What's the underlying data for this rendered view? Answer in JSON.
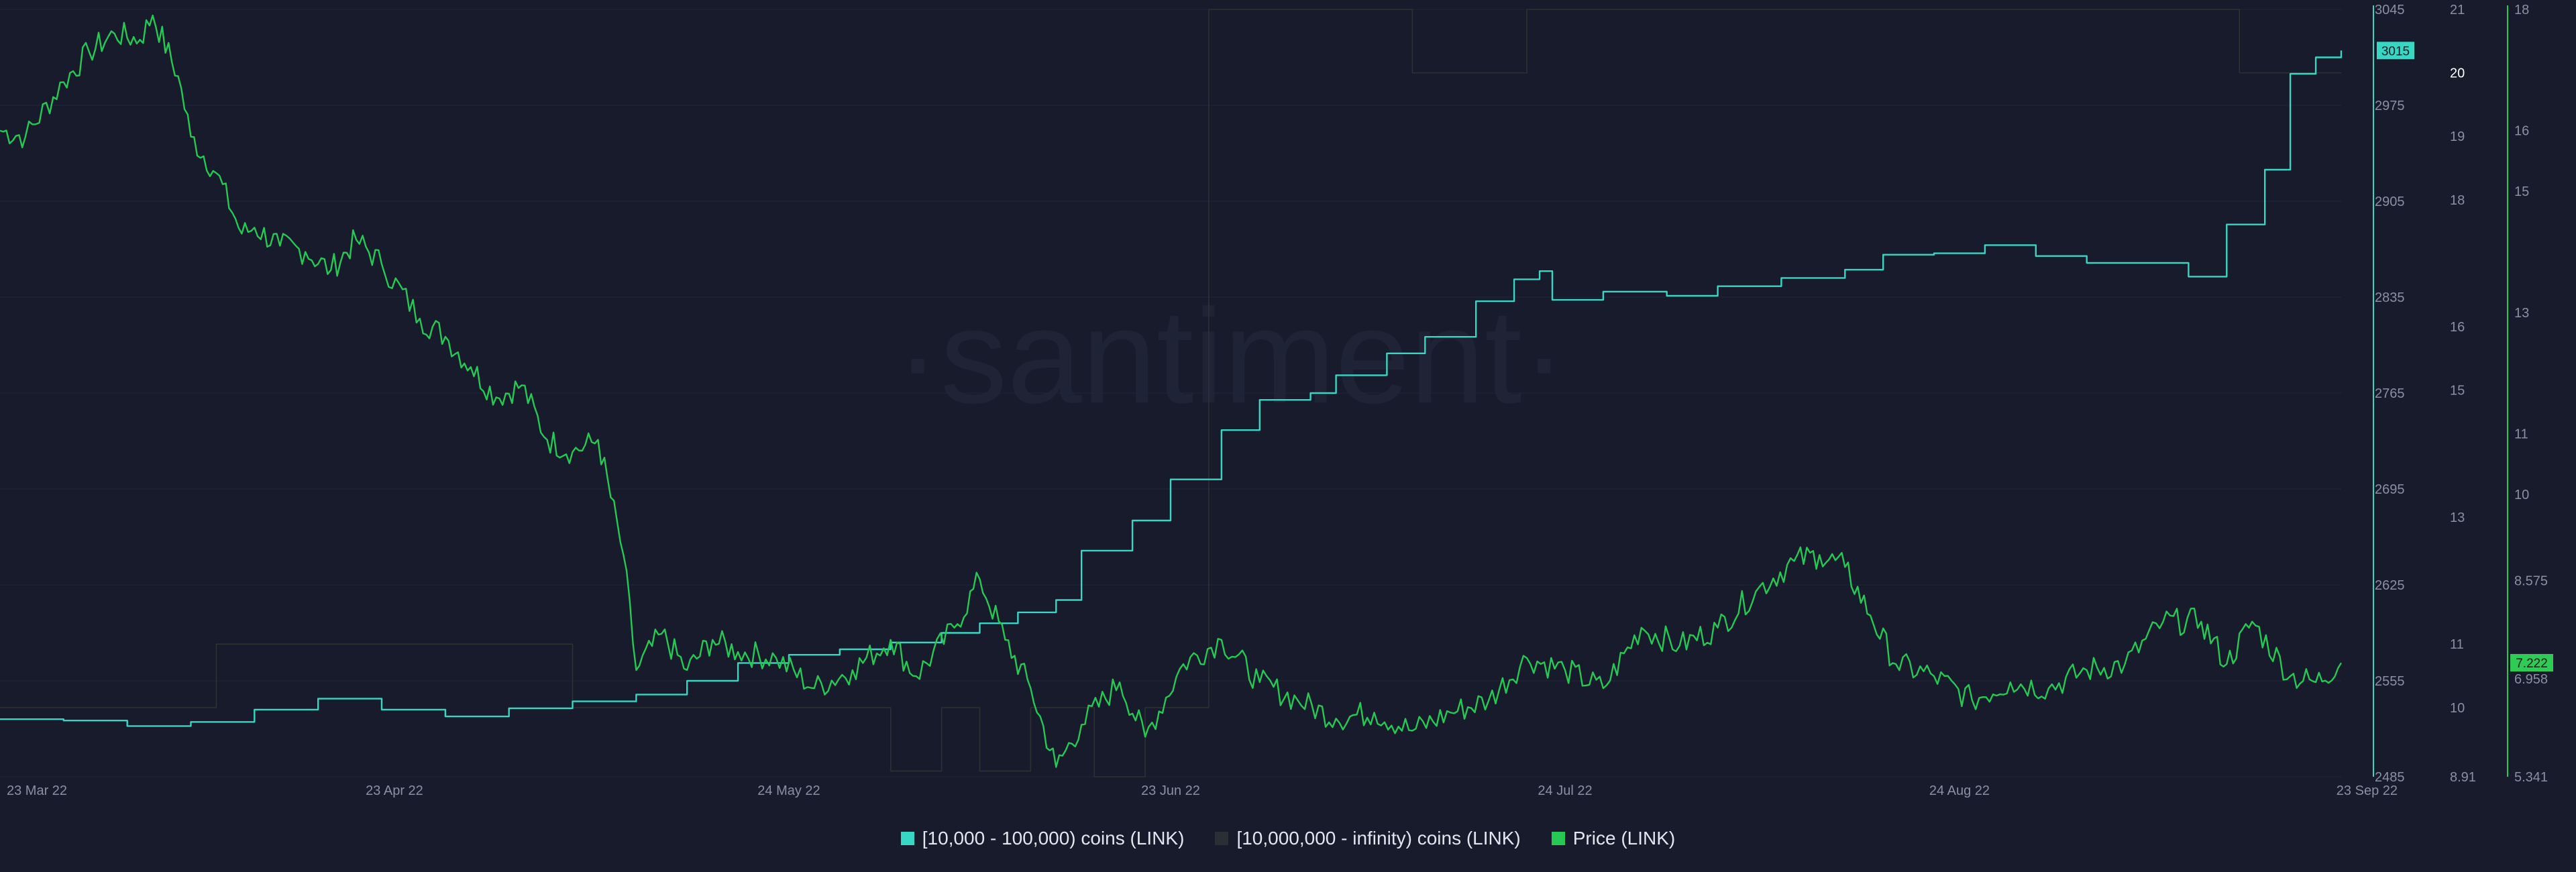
{
  "watermark": "·santiment·",
  "colors": {
    "background": "#181b2b",
    "grid": "#22263a",
    "axis_text": "#8a8fa3",
    "teal": "#37d7c3",
    "dark_series": "#2f3230",
    "green": "#26c953",
    "teal_badge": "#37d7c3",
    "green_badge": "#2ecc55"
  },
  "legend": [
    {
      "label": "[10,000 - 100,000) coins (LINK)",
      "color": "#37d7c3"
    },
    {
      "label": "[10,000,000 - infinity) coins (LINK)",
      "color": "#2b2e35"
    },
    {
      "label": "Price (LINK)",
      "color": "#26c953"
    }
  ],
  "badges": {
    "teal_last": "3015",
    "dark_last": "20",
    "price_last": "7.222"
  },
  "chart_data": {
    "type": "line",
    "x_range": [
      "2022-03-23",
      "2022-09-23"
    ],
    "x_ticks": [
      {
        "date": "2022-03-23",
        "label": "23 Mar 22"
      },
      {
        "date": "2022-04-23",
        "label": "23 Apr 22"
      },
      {
        "date": "2022-05-24",
        "label": "24 May 22"
      },
      {
        "date": "2022-06-23",
        "label": "23 Jun 22"
      },
      {
        "date": "2022-07-24",
        "label": "24 Jul 22"
      },
      {
        "date": "2022-08-24",
        "label": "24 Aug 22"
      },
      {
        "date": "2022-09-23",
        "label": "23 Sep 22"
      }
    ],
    "axes": [
      {
        "id": "teal",
        "ylim": [
          2485,
          3045
        ],
        "ticks": [
          "3045",
          "2975",
          "2905",
          "2835",
          "2765",
          "2695",
          "2625",
          "2555",
          "2485"
        ]
      },
      {
        "id": "dark",
        "ylim": [
          8.91,
          21
        ],
        "ticks": [
          {
            "v": 21,
            "l": "21"
          },
          {
            "v": 19,
            "l": "19"
          },
          {
            "v": 18,
            "l": "18"
          },
          {
            "v": 16,
            "l": "16"
          },
          {
            "v": 15,
            "l": "15"
          },
          {
            "v": 13,
            "l": "13"
          },
          {
            "v": 11,
            "l": "11"
          },
          {
            "v": 10,
            "l": "10"
          },
          {
            "v": 8.91,
            "l": "8.91"
          }
        ]
      },
      {
        "id": "price",
        "ylim": [
          5.341,
          18
        ],
        "ticks": [
          {
            "v": 18,
            "l": "18"
          },
          {
            "v": 16,
            "l": "16"
          },
          {
            "v": 15,
            "l": "15"
          },
          {
            "v": 13,
            "l": "13"
          },
          {
            "v": 11,
            "l": "11"
          },
          {
            "v": 10,
            "l": "10"
          },
          {
            "v": 8.575,
            "l": "8.575"
          },
          {
            "v": 6.958,
            "l": "6.958"
          },
          {
            "v": 5.341,
            "l": "5.341"
          }
        ]
      }
    ],
    "series": [
      {
        "name": "[10,000 - 100,000) coins (LINK)",
        "axis": "teal",
        "color": "#37d7c3",
        "points": [
          [
            "2022-03-23",
            2527
          ],
          [
            "2022-03-28",
            2526
          ],
          [
            "2022-04-02",
            2522
          ],
          [
            "2022-04-07",
            2525
          ],
          [
            "2022-04-12",
            2534
          ],
          [
            "2022-04-17",
            2542
          ],
          [
            "2022-04-22",
            2534
          ],
          [
            "2022-04-27",
            2529
          ],
          [
            "2022-05-02",
            2535
          ],
          [
            "2022-05-07",
            2540
          ],
          [
            "2022-05-12",
            2545
          ],
          [
            "2022-05-16",
            2555
          ],
          [
            "2022-05-20",
            2568
          ],
          [
            "2022-05-24",
            2574
          ],
          [
            "2022-05-28",
            2578
          ],
          [
            "2022-06-01",
            2583
          ],
          [
            "2022-06-05",
            2590
          ],
          [
            "2022-06-08",
            2597
          ],
          [
            "2022-06-11",
            2605
          ],
          [
            "2022-06-14",
            2614
          ],
          [
            "2022-06-16",
            2650
          ],
          [
            "2022-06-20",
            2672
          ],
          [
            "2022-06-23",
            2702
          ],
          [
            "2022-06-27",
            2738
          ],
          [
            "2022-06-30",
            2760
          ],
          [
            "2022-07-04",
            2765
          ],
          [
            "2022-07-06",
            2778
          ],
          [
            "2022-07-10",
            2794
          ],
          [
            "2022-07-13",
            2806
          ],
          [
            "2022-07-17",
            2832
          ],
          [
            "2022-07-20",
            2848
          ],
          [
            "2022-07-22",
            2854
          ],
          [
            "2022-07-23",
            2833
          ],
          [
            "2022-07-27",
            2839
          ],
          [
            "2022-08-01",
            2836
          ],
          [
            "2022-08-05",
            2843
          ],
          [
            "2022-08-10",
            2849
          ],
          [
            "2022-08-15",
            2855
          ],
          [
            "2022-08-18",
            2866
          ],
          [
            "2022-08-22",
            2867
          ],
          [
            "2022-08-26",
            2873
          ],
          [
            "2022-08-30",
            2865
          ],
          [
            "2022-09-03",
            2860
          ],
          [
            "2022-09-07",
            2860
          ],
          [
            "2022-09-11",
            2850
          ],
          [
            "2022-09-14",
            2888
          ],
          [
            "2022-09-17",
            2928
          ],
          [
            "2022-09-19",
            2998
          ],
          [
            "2022-09-21",
            3010
          ],
          [
            "2022-09-23",
            3015
          ]
        ]
      },
      {
        "name": "[10,000,000 - infinity) coins (LINK)",
        "axis": "dark",
        "color": "#2f3230",
        "points": [
          [
            "2022-03-23",
            10
          ],
          [
            "2022-04-09",
            10
          ],
          [
            "2022-04-09",
            11
          ],
          [
            "2022-05-07",
            11
          ],
          [
            "2022-05-07",
            10
          ],
          [
            "2022-06-01",
            10
          ],
          [
            "2022-06-01",
            9
          ],
          [
            "2022-06-05",
            9
          ],
          [
            "2022-06-05",
            10
          ],
          [
            "2022-06-08",
            10
          ],
          [
            "2022-06-08",
            9
          ],
          [
            "2022-06-12",
            9
          ],
          [
            "2022-06-12",
            10
          ],
          [
            "2022-06-17",
            10
          ],
          [
            "2022-06-17",
            8.91
          ],
          [
            "2022-06-21",
            8.91
          ],
          [
            "2022-06-21",
            10
          ],
          [
            "2022-06-26",
            10
          ],
          [
            "2022-06-26",
            21
          ],
          [
            "2022-07-12",
            21
          ],
          [
            "2022-07-12",
            20
          ],
          [
            "2022-07-21",
            20
          ],
          [
            "2022-07-21",
            21
          ],
          [
            "2022-09-15",
            21
          ],
          [
            "2022-09-15",
            20
          ],
          [
            "2022-09-23",
            20
          ]
        ]
      },
      {
        "name": "Price (LINK)",
        "axis": "price",
        "color": "#26c953",
        "points": [
          [
            "2022-03-23",
            16.0
          ],
          [
            "2022-03-25",
            15.9
          ],
          [
            "2022-03-28",
            16.8
          ],
          [
            "2022-03-30",
            17.3
          ],
          [
            "2022-04-01",
            17.6
          ],
          [
            "2022-04-03",
            17.5
          ],
          [
            "2022-04-04",
            17.9
          ],
          [
            "2022-04-06",
            16.9
          ],
          [
            "2022-04-07",
            15.9
          ],
          [
            "2022-04-09",
            15.3
          ],
          [
            "2022-04-11",
            14.3
          ],
          [
            "2022-04-12",
            14.4
          ],
          [
            "2022-04-14",
            14.1
          ],
          [
            "2022-04-16",
            14.0
          ],
          [
            "2022-04-18",
            13.7
          ],
          [
            "2022-04-20",
            14.2
          ],
          [
            "2022-04-22",
            13.8
          ],
          [
            "2022-04-25",
            12.9
          ],
          [
            "2022-04-27",
            12.6
          ],
          [
            "2022-04-29",
            12.1
          ],
          [
            "2022-05-01",
            11.6
          ],
          [
            "2022-05-03",
            11.8
          ],
          [
            "2022-05-05",
            10.9
          ],
          [
            "2022-05-07",
            10.7
          ],
          [
            "2022-05-09",
            10.9
          ],
          [
            "2022-05-11",
            9.0
          ],
          [
            "2022-05-12",
            7.1
          ],
          [
            "2022-05-14",
            7.7
          ],
          [
            "2022-05-16",
            7.1
          ],
          [
            "2022-05-18",
            7.6
          ],
          [
            "2022-05-20",
            7.4
          ],
          [
            "2022-05-23",
            7.3
          ],
          [
            "2022-05-26",
            6.8
          ],
          [
            "2022-05-29",
            7.1
          ],
          [
            "2022-06-01",
            7.6
          ],
          [
            "2022-06-03",
            7.0
          ],
          [
            "2022-06-06",
            7.8
          ],
          [
            "2022-06-08",
            8.6
          ],
          [
            "2022-06-10",
            7.6
          ],
          [
            "2022-06-12",
            6.8
          ],
          [
            "2022-06-14",
            5.5
          ],
          [
            "2022-06-16",
            6.2
          ],
          [
            "2022-06-19",
            6.9
          ],
          [
            "2022-06-21",
            6.0
          ],
          [
            "2022-06-24",
            7.2
          ],
          [
            "2022-06-27",
            7.6
          ],
          [
            "2022-06-30",
            6.9
          ],
          [
            "2022-07-03",
            6.6
          ],
          [
            "2022-07-06",
            6.3
          ],
          [
            "2022-07-09",
            6.4
          ],
          [
            "2022-07-12",
            6.1
          ],
          [
            "2022-07-15",
            6.4
          ],
          [
            "2022-07-18",
            6.6
          ],
          [
            "2022-07-21",
            7.3
          ],
          [
            "2022-07-24",
            7.1
          ],
          [
            "2022-07-27",
            6.8
          ],
          [
            "2022-07-30",
            7.8
          ],
          [
            "2022-08-02",
            7.5
          ],
          [
            "2022-08-05",
            7.8
          ],
          [
            "2022-08-08",
            8.4
          ],
          [
            "2022-08-11",
            8.9
          ],
          [
            "2022-08-13",
            9.0
          ],
          [
            "2022-08-15",
            8.8
          ],
          [
            "2022-08-17",
            8.0
          ],
          [
            "2022-08-19",
            7.2
          ],
          [
            "2022-08-22",
            7.0
          ],
          [
            "2022-08-25",
            6.6
          ],
          [
            "2022-08-28",
            6.9
          ],
          [
            "2022-08-31",
            6.8
          ],
          [
            "2022-09-03",
            7.1
          ],
          [
            "2022-09-06",
            7.2
          ],
          [
            "2022-09-09",
            7.9
          ],
          [
            "2022-09-12",
            7.9
          ],
          [
            "2022-09-14",
            7.2
          ],
          [
            "2022-09-16",
            7.9
          ],
          [
            "2022-09-19",
            7.0
          ],
          [
            "2022-09-21",
            6.9
          ],
          [
            "2022-09-23",
            7.22
          ]
        ]
      }
    ]
  }
}
